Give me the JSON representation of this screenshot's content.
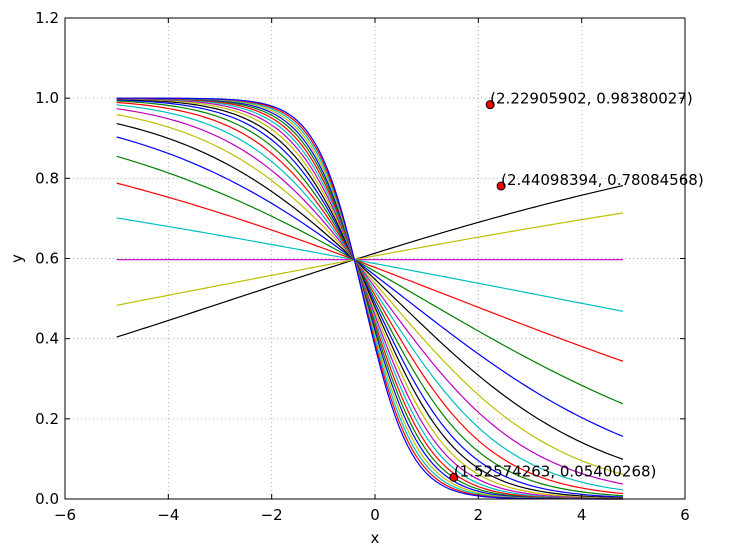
{
  "chart_data": {
    "type": "line",
    "title": "",
    "xlabel": "x",
    "ylabel": "y",
    "xlim": [
      -6,
      6
    ],
    "ylim": [
      0.0,
      1.2
    ],
    "xticks": [
      -6,
      -4,
      -2,
      0,
      2,
      4,
      6
    ],
    "xtick_labels": [
      "−6",
      "−4",
      "−2",
      "0",
      "2",
      "4",
      "6"
    ],
    "yticks": [
      0.0,
      0.2,
      0.4,
      0.6,
      0.8,
      1.0,
      1.2
    ],
    "ytick_labels": [
      "0.0",
      "0.2",
      "0.4",
      "0.6",
      "0.8",
      "1.0",
      "1.2"
    ],
    "grid": true,
    "x_range": [
      -5,
      4.8
    ],
    "curve_function": "y = 1/(1+exp(-(w*x+b))) with pivot at x=-0.4, y=0.597",
    "series": [
      {
        "w": -0.0,
        "color": "#bf00bf"
      },
      {
        "w": 0.17,
        "color": "#000000"
      },
      {
        "w": 0.1,
        "color": "#bfbf00"
      },
      {
        "w": -0.1,
        "color": "#00bfbf"
      },
      {
        "w": -0.2,
        "color": "#ff0000"
      },
      {
        "w": -0.3,
        "color": "#008000"
      },
      {
        "w": -0.4,
        "color": "#0000ff"
      },
      {
        "w": -0.5,
        "color": "#000000"
      },
      {
        "w": -0.6,
        "color": "#bfbf00"
      },
      {
        "w": -0.7,
        "color": "#bf00bf"
      },
      {
        "w": -0.8,
        "color": "#00bfbf"
      },
      {
        "w": -0.9,
        "color": "#ff0000"
      },
      {
        "w": -1.0,
        "color": "#008000"
      },
      {
        "w": -1.1,
        "color": "#0000ff"
      },
      {
        "w": -1.2,
        "color": "#000000"
      },
      {
        "w": -1.3,
        "color": "#bfbf00"
      },
      {
        "w": -1.4,
        "color": "#bf00bf"
      },
      {
        "w": -1.5,
        "color": "#00bfbf"
      },
      {
        "w": -1.6,
        "color": "#ff0000"
      },
      {
        "w": -1.7,
        "color": "#008000"
      },
      {
        "w": -1.8,
        "color": "#0000ff"
      },
      {
        "w": -1.9,
        "color": "#bfbf00"
      },
      {
        "w": -2.0,
        "color": "#00bfbf"
      },
      {
        "w": -2.1,
        "color": "#ff0000"
      },
      {
        "w": -2.2,
        "color": "#0000ff"
      }
    ],
    "points": [
      {
        "x": 2.22905902,
        "y": 0.98380027,
        "label": "(2.22905902, 0.98380027)",
        "color": "#ff0000"
      },
      {
        "x": 2.44098394,
        "y": 0.78084568,
        "label": "(2.44098394, 0.78084568)",
        "color": "#ff0000"
      },
      {
        "x": 1.52574263,
        "y": 0.05400268,
        "label": "(1.52574263, 0.05400268)",
        "color": "#ff0000"
      }
    ]
  }
}
